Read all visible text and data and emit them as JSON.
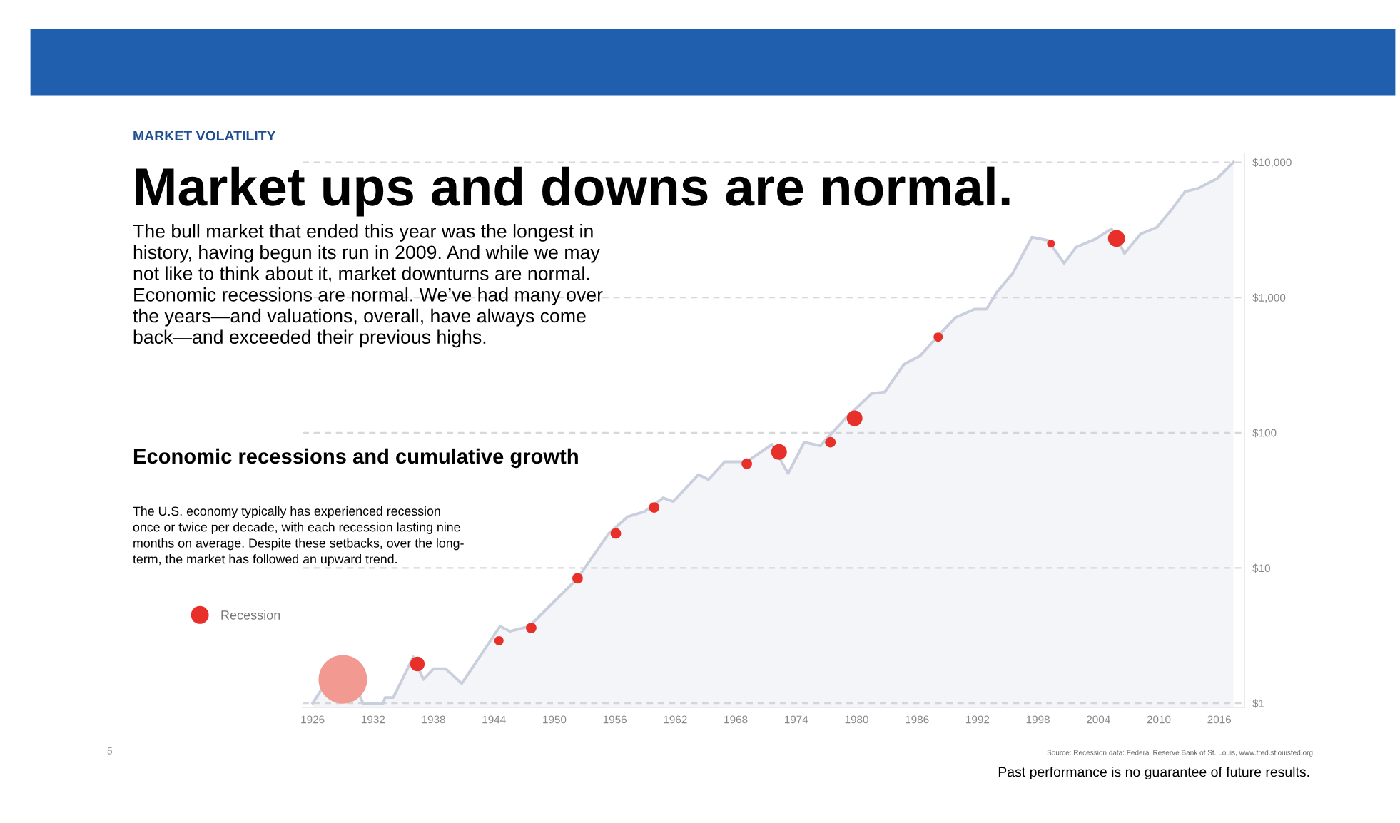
{
  "chart_data": {
    "type": "area",
    "title": "Market ups and downs are normal.",
    "subtitle": "Economic recessions and cumulative growth",
    "annotations": [
      "MARKET VOLATILITY",
      "The bull market that ended this year was the longest in\nhistory, having begun its run in 2009. And while we may\nnot like to think about it, market downturns are normal.\nEconomic recessions are normal. We’ve had many over\nthe years—and valuations, overall, have always come\nback—and exceeded their previous highs.",
      "The U.S. economy typically has experienced recession\nonce or twice per decade, with each recession lasting nine\nmonths on average. Despite these setbacks, over the long-\nterm, the market has followed an upward trend.",
      "Source: Recession data: Federal Reserve Bank of St. Louis, www.fred.stlouisfed.org",
      "Past performance is no guarantee of future results.",
      "5"
    ],
    "series": [
      {
        "color": "#c9cfdd",
        "x": [
          1926,
          1929,
          1931,
          1933,
          1933.2,
          1934,
          1936,
          1937,
          1938,
          1939.2,
          1940.8,
          1944.6,
          1945.6,
          1947.5,
          1952.3,
          1955.4,
          1957.3,
          1958.9,
          1960.8,
          1961.8,
          1964.3,
          1965.3,
          1966.9,
          1969.1,
          1971.6,
          1973.2,
          1974.8,
          1976.4,
          1979,
          1981.5,
          1982.8,
          1984.7,
          1986.3,
          1988.2,
          1989.8,
          1991.7,
          1992.9,
          1993.9,
          1995.5,
          1997.4,
          1999,
          2000.6,
          2001.8,
          2003.7,
          2005.3,
          2006.6,
          2008.2,
          2009.8,
          2011.4,
          2012.6,
          2013.9,
          2015.8,
          2017.4
        ],
        "values": [
          1,
          2.2,
          1,
          1,
          1.1,
          1.1,
          2.2,
          1.5,
          1.8,
          1.8,
          1.4,
          3.7,
          3.4,
          3.7,
          8.4,
          18,
          24,
          26,
          33,
          31,
          49,
          45,
          61,
          61,
          82,
          50,
          85,
          80,
          130,
          195,
          200,
          320,
          370,
          530,
          710,
          820,
          820,
          1090,
          1510,
          2790,
          2640,
          1790,
          2360,
          2700,
          3220,
          2120,
          2950,
          3300,
          4600,
          6070,
          6410,
          7590,
          10000
        ]
      },
      {
        "type": "bubble",
        "name": "Recession",
        "marker": "circle",
        "color": "#e8302a",
        "x": [
          1929,
          1936.4,
          1944.5,
          1947.7,
          1952.3,
          1956.1,
          1959.9,
          1969.1,
          1972.3,
          1977.4,
          1979.8,
          1988.1,
          1999.3,
          2005.8
        ],
        "values": [
          1.5,
          1.95,
          2.9,
          3.6,
          8.4,
          18,
          28,
          59,
          72,
          85,
          128,
          510,
          2500,
          2730
        ],
        "sizes": [
          1,
          0.09,
          0.036,
          0.047,
          0.047,
          0.047,
          0.047,
          0.047,
          0.105,
          0.047,
          0.105,
          0.036,
          0.026,
          0.123
        ],
        "colors": [
          "#f29a92",
          "#e8302a",
          "#e8302a",
          "#e8302a",
          "#e8302a",
          "#e8302a",
          "#e8302a",
          "#e8302a",
          "#e8302a",
          "#e8302a",
          "#e8302a",
          "#e8302a",
          "#e8302a",
          "#e8302a"
        ]
      }
    ],
    "xlim": [
      1925,
      2018.5
    ],
    "xticks": [
      1926,
      1932,
      1938,
      1944,
      1950,
      1956,
      1962,
      1968,
      1974,
      1980,
      1986,
      1992,
      1998,
      2004,
      2010,
      2016
    ],
    "log": "y",
    "ylim": [
      0.93,
      11500
    ],
    "yticks": [
      {
        "value": 1,
        "label": "$1"
      },
      {
        "value": 10,
        "label": "$10"
      },
      {
        "value": 100,
        "label": "$100"
      },
      {
        "value": 1000,
        "label": "$1,000"
      },
      {
        "value": 10000,
        "label": "$10,000"
      }
    ],
    "grid": "y",
    "legend": "left"
  }
}
